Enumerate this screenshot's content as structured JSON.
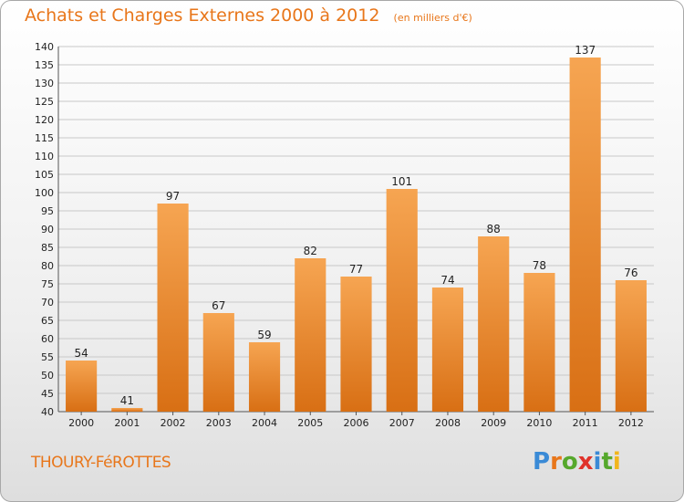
{
  "header": {
    "title": "Achats et Charges Externes 2000 à 2012",
    "unit": "(en milliers d'€)"
  },
  "footer": {
    "commune": "THOURY-FéROTTES",
    "logo_letters": [
      {
        "ch": "P",
        "color": "#3a8ad6"
      },
      {
        "ch": "r",
        "color": "#e8761a"
      },
      {
        "ch": "o",
        "color": "#56a82c"
      },
      {
        "ch": "x",
        "color": "#e0322a"
      },
      {
        "ch": "i",
        "color": "#3a8ad6"
      },
      {
        "ch": "t",
        "color": "#56a82c"
      },
      {
        "ch": "i",
        "color": "#f2b51c"
      }
    ]
  },
  "colors": {
    "bar_light": "#f6a552",
    "bar_dark": "#d86f14",
    "grid": "#c8c8c8",
    "text": "#222222",
    "accent": "#e8761a"
  },
  "chart_data": {
    "type": "bar",
    "categories": [
      "2000",
      "2001",
      "2002",
      "2003",
      "2004",
      "2005",
      "2006",
      "2007",
      "2008",
      "2009",
      "2010",
      "2011",
      "2012"
    ],
    "values": [
      54,
      41,
      97,
      67,
      59,
      82,
      77,
      101,
      74,
      88,
      78,
      137,
      76
    ],
    "title": "Achats et Charges Externes 2000 à 2012",
    "ylim": [
      40,
      140
    ],
    "ytick_step": 5,
    "grid": true,
    "data_labels": true
  }
}
